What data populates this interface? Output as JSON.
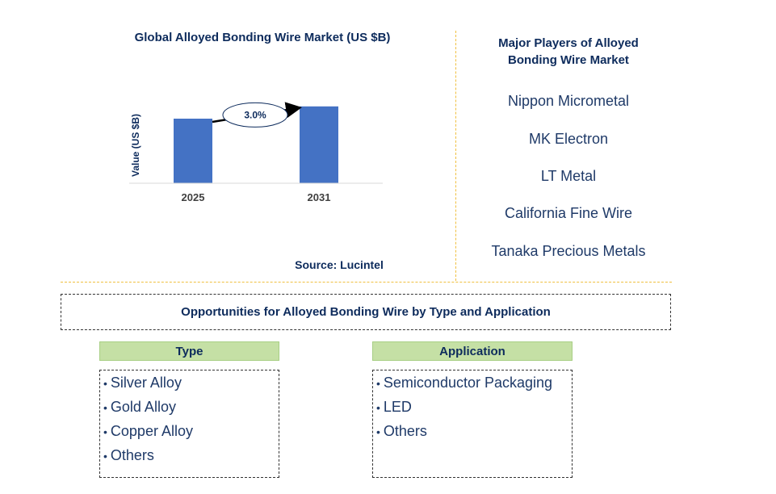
{
  "chart": {
    "title": "Global Alloyed Bonding Wire Market (US $B)",
    "source": "Source: Lucintel"
  },
  "chart_data": {
    "type": "bar",
    "categories": [
      "2025",
      "2031"
    ],
    "values": [
      1.0,
      1.19
    ],
    "ylabel": "Value (US $B)",
    "xlabel": "",
    "annotation": "3.0%",
    "bar_color": "#4472c4",
    "ylim": [
      0,
      1.4
    ],
    "grid": false
  },
  "players": {
    "title": "Major Players of Alloyed Bonding Wire Market",
    "items": [
      "Nippon Micrometal",
      "MK Electron",
      "LT Metal",
      "California Fine Wire",
      "Tanaka Precious Metals"
    ]
  },
  "opportunities": {
    "title": "Opportunities for Alloyed Bonding Wire by Type and Application",
    "type": {
      "header": "Type",
      "items": [
        "Silver Alloy",
        "Gold Alloy",
        "Copper Alloy",
        "Others"
      ]
    },
    "application": {
      "header": "Application",
      "items": [
        "Semiconductor Packaging",
        "LED",
        "Others"
      ]
    }
  },
  "colors": {
    "accent_text": "#0d2b5c",
    "header_green": "#c5e0a5",
    "divider_gold": "#f0c040"
  }
}
